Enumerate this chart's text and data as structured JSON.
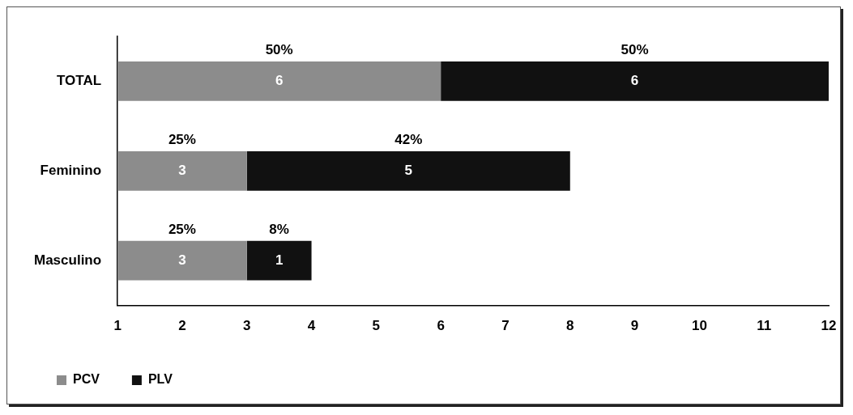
{
  "chart_data": {
    "type": "bar",
    "orientation": "horizontal",
    "stacked": true,
    "categories": [
      "TOTAL",
      "Feminino",
      "Masculino"
    ],
    "series": [
      {
        "name": "PCV",
        "color": "#8c8c8c",
        "values": [
          6,
          3,
          3
        ]
      },
      {
        "name": "PLV",
        "color": "#111111",
        "values": [
          6,
          5,
          1
        ]
      }
    ],
    "xlim": [
      1,
      12
    ],
    "xticks": [
      1,
      2,
      3,
      4,
      5,
      6,
      7,
      8,
      9,
      10,
      11,
      12
    ],
    "data_labels": true,
    "grid": false,
    "legend": "bottom",
    "annotations": [
      "50%",
      "50%",
      "25%",
      "42%",
      "25%",
      "8%"
    ]
  }
}
